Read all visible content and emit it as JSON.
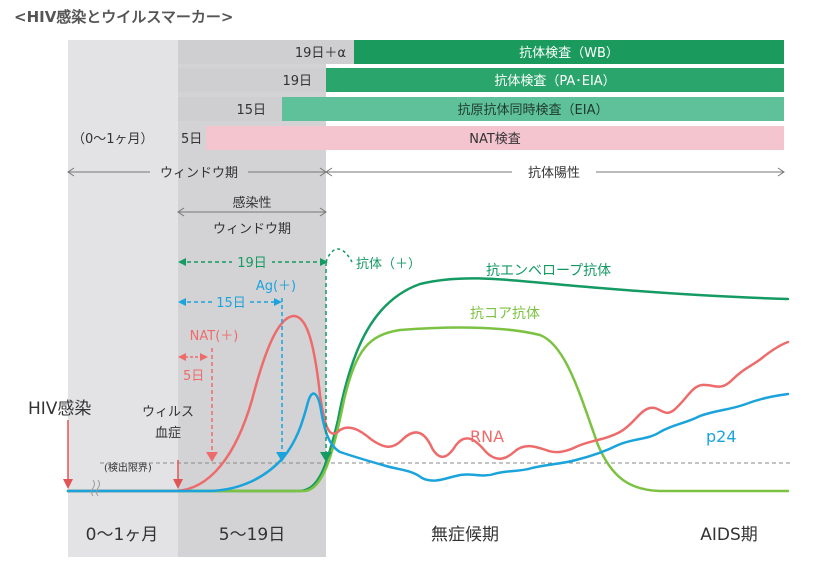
{
  "title": "<HIV感染とウイルスマーカー>",
  "tests": [
    {
      "days": "19日＋α",
      "name": "抗体検査（WB）",
      "color": "#1a9a5c"
    },
    {
      "days": "19日",
      "name": "抗体検査（PA･EIA）",
      "color": "#2aa56b"
    },
    {
      "days": "15日",
      "name": "抗原抗体同時検査（EIA）",
      "color": "#5fc19a"
    },
    {
      "days": "5日",
      "name": "NAT検査",
      "color": "#f4c4cf"
    }
  ],
  "first_period_label": "（0～1ヶ月）",
  "window_label": "ウィンドウ期",
  "antibody_positive_label": "抗体陽性",
  "infectious_window_label": [
    "感染性",
    "ウィンドウ期"
  ],
  "markers": {
    "days19": "19日",
    "days15": "15日",
    "nat": "NAT(＋)",
    "days5": "5日",
    "ag": "Ag(＋)",
    "antibody": "抗体（＋）"
  },
  "event_labels": {
    "infection": "HIV感染",
    "viremia": [
      "ウィルス",
      "血症"
    ],
    "detection_limit": "(検出限界)"
  },
  "curve_labels": {
    "envelope": "抗エンベロープ抗体",
    "core": "抗コア抗体",
    "rna": "RNA",
    "p24": "p24"
  },
  "phases": [
    "0～1ヶ月",
    "5～19日",
    "無症候期",
    "AIDS期"
  ],
  "colors": {
    "envelope": "#149a63",
    "core": "#7cc242",
    "rna": "#ee6b6b",
    "p24": "#1ba3dc",
    "gray_band": "#e3e3e5",
    "gray_zone": "#d3d3d5",
    "text": "#444444"
  }
}
